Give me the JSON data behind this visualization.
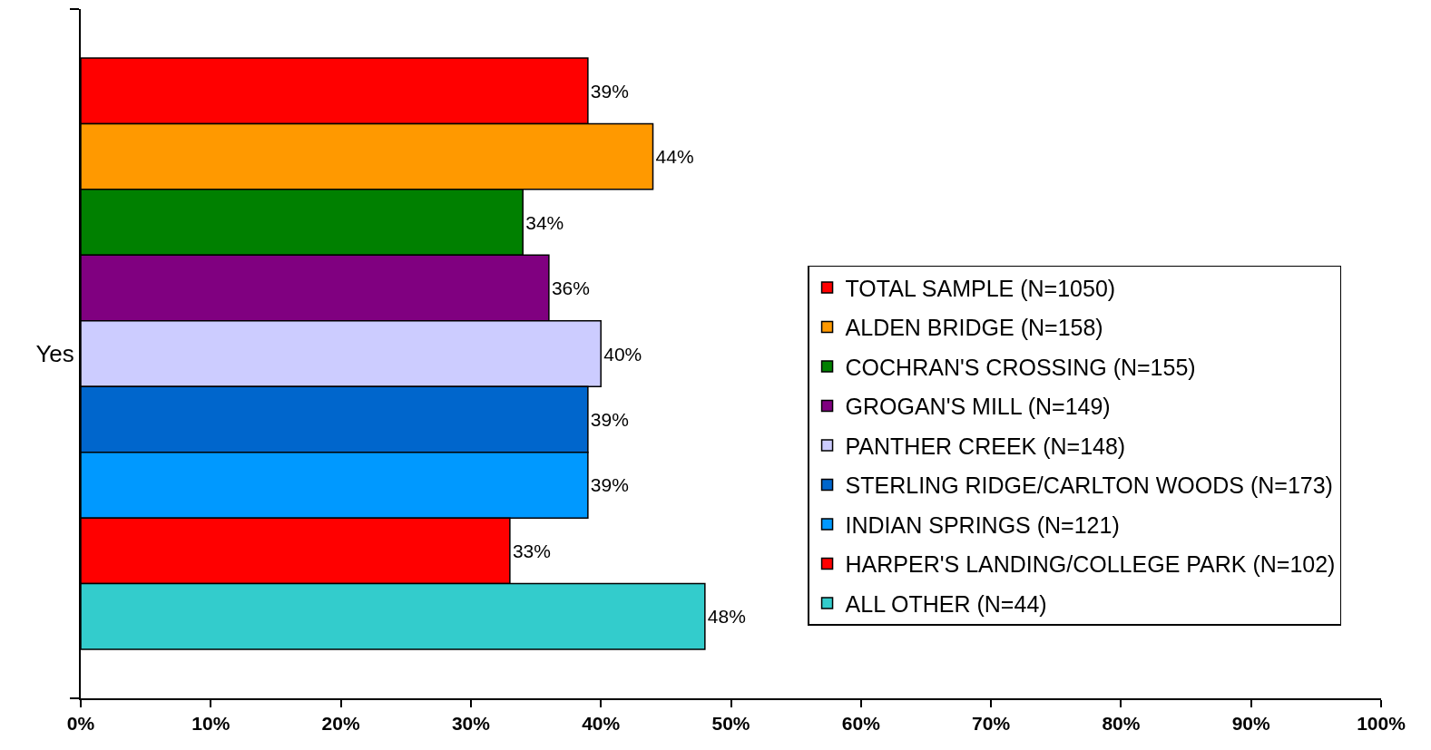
{
  "chart_data": {
    "type": "bar",
    "orientation": "horizontal",
    "categories": [
      "Yes"
    ],
    "series": [
      {
        "name": "TOTAL SAMPLE (N=1050)",
        "color": "#ff0000",
        "values": [
          39
        ],
        "value_labels": [
          "39%"
        ]
      },
      {
        "name": "ALDEN BRIDGE (N=158)",
        "color": "#ff9900",
        "values": [
          44
        ],
        "value_labels": [
          "44%"
        ]
      },
      {
        "name": "COCHRAN'S CROSSING (N=155)",
        "color": "#008000",
        "values": [
          34
        ],
        "value_labels": [
          "34%"
        ]
      },
      {
        "name": "GROGAN'S MILL (N=149)",
        "color": "#800080",
        "values": [
          36
        ],
        "value_labels": [
          "36%"
        ]
      },
      {
        "name": "PANTHER CREEK (N=148)",
        "color": "#ccccff",
        "values": [
          40
        ],
        "value_labels": [
          "40%"
        ]
      },
      {
        "name": "STERLING RIDGE/CARLTON WOODS (N=173)",
        "color": "#0066cc",
        "values": [
          39
        ],
        "value_labels": [
          "39%"
        ]
      },
      {
        "name": "INDIAN SPRINGS (N=121)",
        "color": "#0099ff",
        "values": [
          39
        ],
        "value_labels": [
          "39%"
        ]
      },
      {
        "name": "HARPER'S LANDING/COLLEGE PARK (N=102)",
        "color": "#ff0000",
        "values": [
          33
        ],
        "value_labels": [
          "33%"
        ]
      },
      {
        "name": "ALL OTHER (N=44)",
        "color": "#33cccc",
        "values": [
          48
        ],
        "value_labels": [
          "48%"
        ]
      }
    ],
    "xlim": [
      0,
      100
    ],
    "xticks": [
      {
        "value": 0,
        "label": "0%"
      },
      {
        "value": 10,
        "label": "10%"
      },
      {
        "value": 20,
        "label": "20%"
      },
      {
        "value": 30,
        "label": "30%"
      },
      {
        "value": 40,
        "label": "40%"
      },
      {
        "value": 50,
        "label": "50%"
      },
      {
        "value": 60,
        "label": "60%"
      },
      {
        "value": 70,
        "label": "70%"
      },
      {
        "value": 80,
        "label": "80%"
      },
      {
        "value": 90,
        "label": "90%"
      },
      {
        "value": 100,
        "label": "100%"
      }
    ],
    "grid": false,
    "legend": "right"
  }
}
